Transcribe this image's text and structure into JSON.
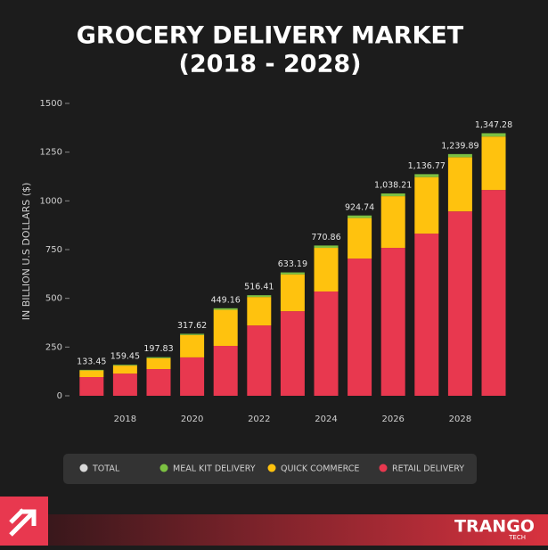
{
  "chart_data": {
    "type": "stacked-bar",
    "title": "GROCERY DELIVERY MARKET",
    "subtitle": "(2018 - 2028)",
    "y_label": "IN BILLION U.S DOLLARS ($)",
    "categories": [
      null,
      "2018",
      null,
      "2020",
      null,
      "2022",
      null,
      "2024",
      null,
      "2026",
      null,
      "2028",
      null
    ],
    "ylim": [
      0,
      1500
    ],
    "yticks": [
      0,
      250,
      500,
      750,
      1000,
      1250,
      1500
    ],
    "series": [
      {
        "name": "TOTAL",
        "color": "#d9d9d9",
        "values": [
          133.45,
          159.45,
          197.83,
          317.62,
          449.16,
          516.41,
          633.19,
          770.86,
          924.74,
          1038.21,
          1136.77,
          1239.89,
          1347.28
        ],
        "value_labels": [
          "133.45",
          "159.45",
          "197.83",
          "317.62",
          "449.16",
          "516.41",
          "633.19",
          "770.86",
          "924.74",
          "1,038.21",
          "1,136.77",
          "1,239.89",
          "1,347.28"
        ]
      },
      {
        "name": "MEAL KIT DELIVERY",
        "color": "#7cc142",
        "values": [
          3,
          4,
          5,
          6,
          8,
          9,
          10,
          12,
          13,
          14,
          15,
          16,
          17
        ]
      },
      {
        "name": "QUICK COMMERCE",
        "color": "#ffc20e",
        "values": [
          34,
          41,
          56,
          115,
          185,
          146,
          189,
          224,
          208,
          265,
          290,
          278,
          274
        ]
      },
      {
        "name": "RETAIL DELIVERY",
        "color": "#e8384f",
        "values": [
          96,
          114,
          137,
          197,
          256,
          361,
          434,
          535,
          704,
          759,
          832,
          946,
          1056
        ]
      }
    ],
    "brand": "TRANGO",
    "brand_sub": "TECH"
  }
}
